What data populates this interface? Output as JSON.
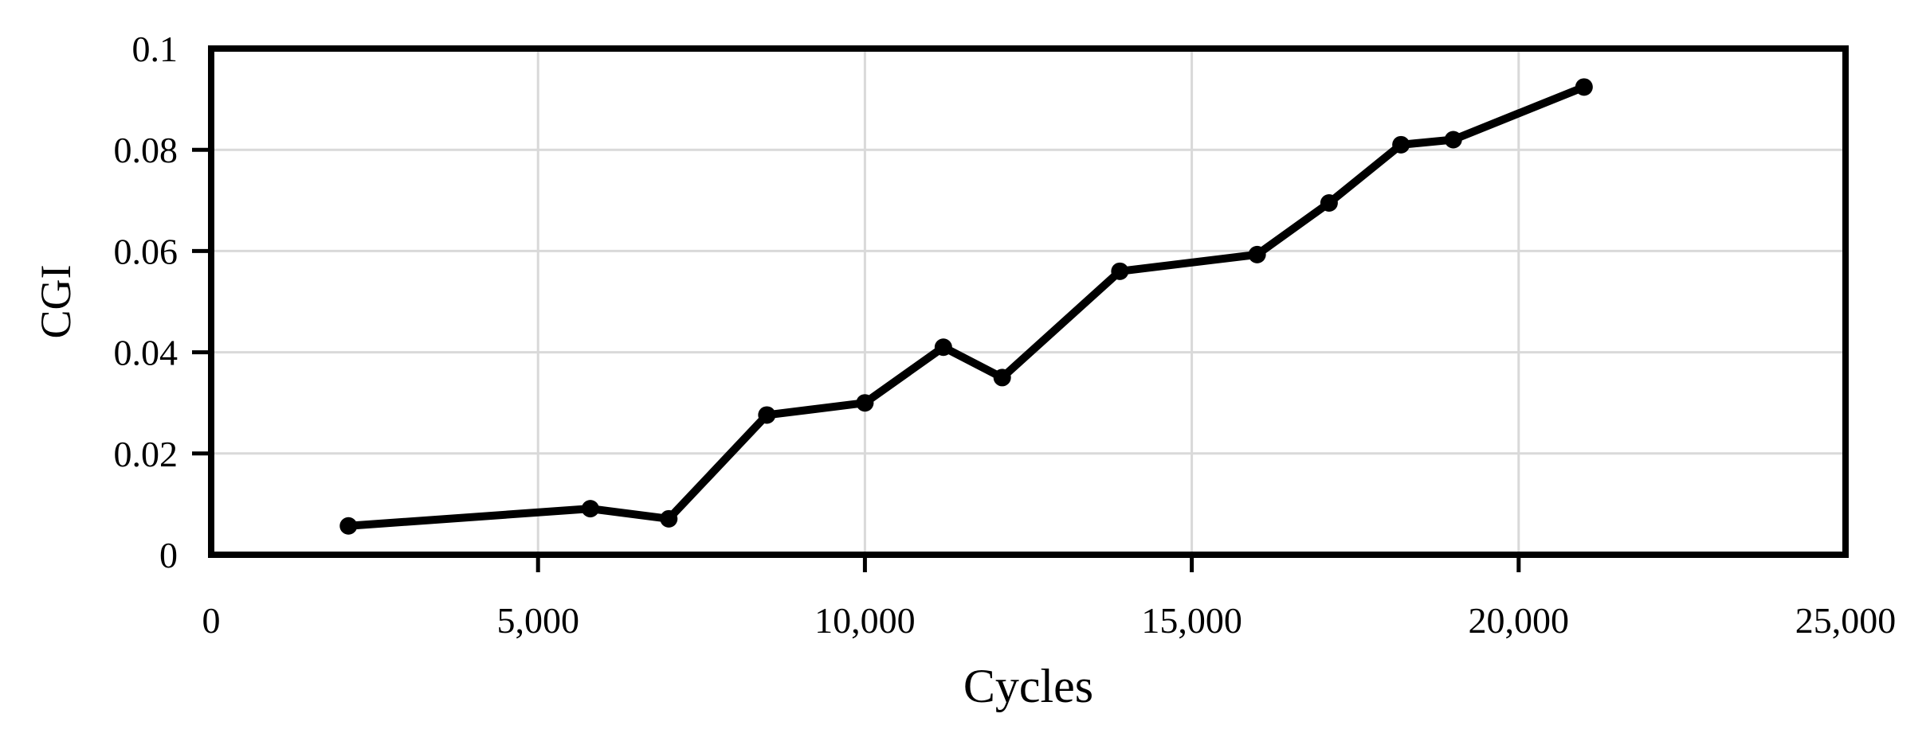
{
  "chart_data": {
    "type": "line",
    "title": "",
    "xlabel": "Cycles",
    "ylabel": "CGI",
    "xlim": [
      0,
      25000
    ],
    "ylim": [
      0,
      0.1
    ],
    "x_ticks": [
      0,
      5000,
      10000,
      15000,
      20000,
      25000
    ],
    "x_tick_labels": [
      "0",
      "5,000",
      "10,000",
      "15,000",
      "20,000",
      "25,000"
    ],
    "y_ticks": [
      0,
      0.02,
      0.04,
      0.06,
      0.08,
      0.1
    ],
    "y_tick_labels": [
      "0",
      "0.02",
      "0.04",
      "0.06",
      "0.08",
      "0.1"
    ],
    "grid": true,
    "legend": "none",
    "series": [
      {
        "name": "CGI",
        "marker": "circle",
        "x": [
          2100,
          5800,
          7000,
          8500,
          10000,
          11200,
          12100,
          13900,
          16000,
          17100,
          18200,
          19000,
          21000
        ],
        "y": [
          0.0057,
          0.0091,
          0.0071,
          0.0276,
          0.03,
          0.041,
          0.035,
          0.056,
          0.0593,
          0.0695,
          0.081,
          0.082,
          0.0924
        ]
      }
    ]
  },
  "colors": {
    "line": "#000000",
    "marker": "#000000",
    "grid": "#d9d9d9",
    "frame": "#000000",
    "background": "#ffffff",
    "text": "#000000"
  }
}
